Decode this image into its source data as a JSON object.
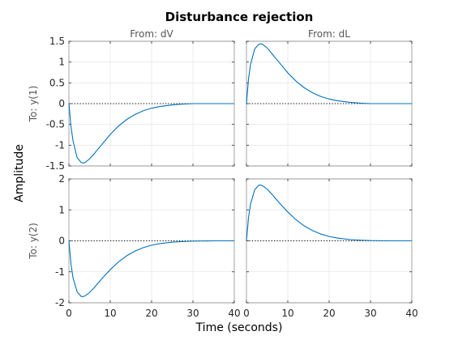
{
  "chart_data": {
    "type": "line",
    "title": "Disturbance rejection",
    "xlabel": "Time (seconds)",
    "ylabel": "Amplitude",
    "column_labels": [
      "From: dV",
      "From: dL"
    ],
    "row_labels": [
      "To: y(1)",
      "To: y(2)"
    ],
    "xlim": [
      0,
      40
    ],
    "xticks": [
      "0",
      "10",
      "20",
      "30",
      "40"
    ],
    "grid": true,
    "series_color": "#0072bd",
    "rows": [
      {
        "ylim": [
          -1.5,
          1.5
        ],
        "yticks": [
          "1.5",
          "1",
          "0.5",
          "0",
          "-0.5",
          "-1",
          "-1.5"
        ],
        "ytick_values": [
          1.5,
          1,
          0.5,
          0,
          -0.5,
          -1,
          -1.5
        ]
      },
      {
        "ylim": [
          -2,
          2
        ],
        "yticks": [
          "2",
          "1",
          "0",
          "-1",
          "-2"
        ],
        "ytick_values": [
          2,
          1,
          0,
          -1,
          -2
        ]
      }
    ],
    "series": [
      {
        "row": 0,
        "col": 0,
        "x": [
          0,
          0.5,
          1,
          2,
          3,
          3.5,
          4,
          5,
          6,
          8,
          10,
          12,
          14,
          16,
          18,
          20,
          22,
          25,
          28,
          30,
          35,
          40
        ],
        "y": [
          0,
          -0.55,
          -0.9,
          -1.3,
          -1.42,
          -1.43,
          -1.41,
          -1.33,
          -1.22,
          -0.98,
          -0.74,
          -0.54,
          -0.38,
          -0.26,
          -0.17,
          -0.11,
          -0.07,
          -0.03,
          -0.01,
          0,
          0,
          0
        ]
      },
      {
        "row": 0,
        "col": 1,
        "x": [
          0,
          0.5,
          1,
          2,
          3,
          3.5,
          4,
          5,
          6,
          8,
          10,
          12,
          14,
          16,
          18,
          20,
          22,
          25,
          28,
          30,
          35,
          40
        ],
        "y": [
          0,
          0.6,
          0.95,
          1.32,
          1.43,
          1.44,
          1.42,
          1.34,
          1.22,
          0.98,
          0.74,
          0.54,
          0.38,
          0.26,
          0.17,
          0.11,
          0.07,
          0.03,
          0.01,
          0,
          0,
          0
        ]
      },
      {
        "row": 1,
        "col": 0,
        "x": [
          0,
          0.5,
          1,
          2,
          3,
          3.5,
          4,
          5,
          6,
          8,
          10,
          12,
          14,
          16,
          18,
          20,
          22,
          25,
          28,
          30,
          35,
          40
        ],
        "y": [
          0,
          -0.75,
          -1.2,
          -1.65,
          -1.8,
          -1.8,
          -1.77,
          -1.67,
          -1.53,
          -1.22,
          -0.93,
          -0.68,
          -0.48,
          -0.33,
          -0.22,
          -0.14,
          -0.09,
          -0.04,
          -0.02,
          -0.01,
          0,
          0
        ]
      },
      {
        "row": 1,
        "col": 1,
        "x": [
          0,
          0.5,
          1,
          2,
          3,
          3.5,
          4,
          5,
          6,
          8,
          10,
          12,
          14,
          16,
          18,
          20,
          22,
          25,
          28,
          30,
          35,
          40
        ],
        "y": [
          0,
          0.75,
          1.2,
          1.65,
          1.8,
          1.8,
          1.77,
          1.67,
          1.53,
          1.22,
          0.93,
          0.68,
          0.48,
          0.33,
          0.22,
          0.14,
          0.09,
          0.04,
          0.02,
          0.01,
          0,
          0
        ]
      }
    ]
  }
}
